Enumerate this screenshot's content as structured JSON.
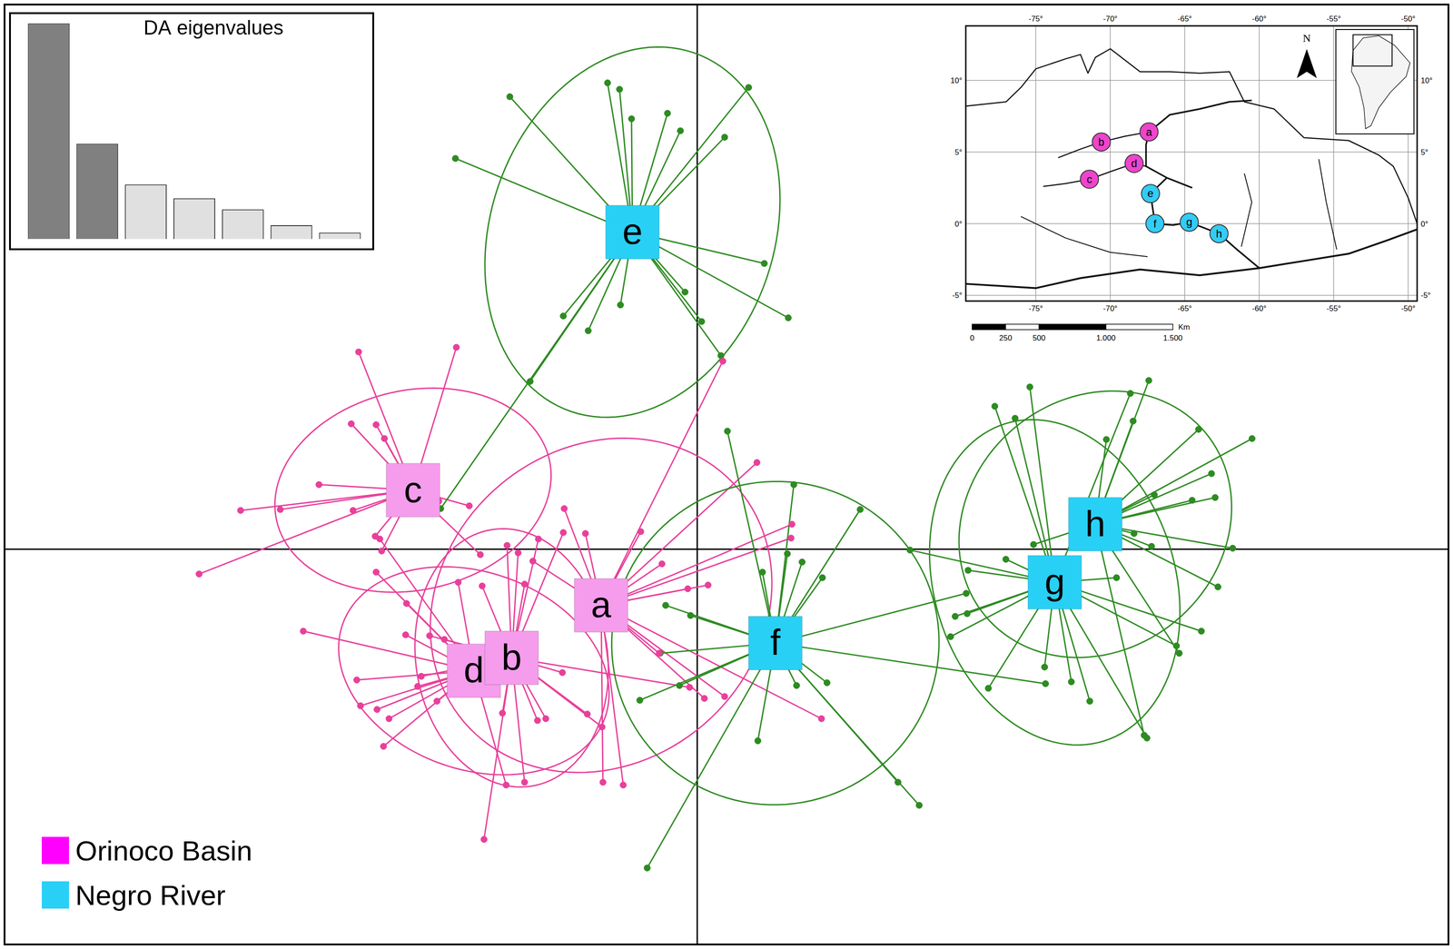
{
  "chart_data": [
    {
      "type": "scatter",
      "xlim": [
        -7.52,
        8.16
      ],
      "ylim": [
        -4.3,
        5.92
      ],
      "xticks": [
        0
      ],
      "yticks": [
        0
      ],
      "grid": true,
      "tick_labels": false,
      "legend": "lower left",
      "legend_entries": [
        {
          "name": "Orinoco Basin",
          "color": "#ff00ff"
        },
        {
          "name": "Negro River",
          "color": "#29d0f5"
        }
      ],
      "series": [
        {
          "name": "c",
          "region": "Orinoco Basin",
          "color": "#e8409b",
          "center_color": "#f59cec",
          "center": [
            -3.08,
            0.64
          ],
          "points": [
            [
              -3.67,
              2.14
            ],
            [
              -2.61,
              2.19
            ],
            [
              -3.75,
              1.36
            ],
            [
              -3.48,
              1.35
            ],
            [
              -3.39,
              1.2
            ],
            [
              -4.1,
              0.7
            ],
            [
              -4.95,
              0.42
            ],
            [
              -4.52,
              0.43
            ],
            [
              -3.73,
              0.42
            ],
            [
              -5.4,
              -0.27
            ],
            [
              -3.49,
              0.14
            ],
            [
              -3.42,
              -0.02
            ],
            [
              -2.35,
              -0.06
            ],
            [
              -2.47,
              0.47
            ],
            [
              -2.8,
              0.52
            ]
          ]
        },
        {
          "name": "d",
          "region": "Orinoco Basin",
          "color": "#e8409b",
          "center_color": "#f59cec",
          "center": [
            -2.42,
            -1.32
          ],
          "points": [
            [
              -4.27,
              -0.89
            ],
            [
              -3.69,
              -1.42
            ],
            [
              -3.65,
              -1.7
            ],
            [
              -3.47,
              -1.74
            ],
            [
              -3.34,
              -1.84
            ],
            [
              -3.4,
              -2.14
            ],
            [
              -3.15,
              -0.59
            ],
            [
              -3.16,
              -0.93
            ],
            [
              -3.48,
              -0.25
            ],
            [
              -3.03,
              -1.49
            ],
            [
              -2.82,
              -1.65
            ],
            [
              -2.59,
              -0.36
            ],
            [
              -3.44,
              0.11
            ],
            [
              -2.07,
              -2.56
            ]
          ]
        },
        {
          "name": "b",
          "region": "Orinoco Basin",
          "color": "#e8409b",
          "center_color": "#f59cec",
          "center": [
            -2.01,
            -1.18
          ],
          "points": [
            [
              -2.06,
              0.04
            ],
            [
              -1.94,
              -0.04
            ],
            [
              -1.72,
              0.11
            ],
            [
              -1.45,
              0.18
            ],
            [
              -2.33,
              -0.4
            ],
            [
              -1.87,
              -0.38
            ],
            [
              -2.9,
              -0.94
            ],
            [
              -2.74,
              -0.98
            ],
            [
              -2.99,
              -1.38
            ],
            [
              -1.73,
              -1.86
            ],
            [
              -1.64,
              -1.84
            ],
            [
              -1.87,
              -2.53
            ],
            [
              -2.31,
              -3.15
            ],
            [
              -2.11,
              -1.78
            ],
            [
              -1.19,
              -1.79
            ],
            [
              -1.03,
              -1.93
            ],
            [
              -1.46,
              -1.34
            ],
            [
              -0.08,
              -1.5
            ]
          ]
        },
        {
          "name": "a",
          "region": "Orinoco Basin",
          "color": "#e8409b",
          "center_color": "#f59cec",
          "center": [
            -1.04,
            -0.61
          ],
          "points": [
            [
              0.28,
              2.04
            ],
            [
              0.65,
              0.94
            ],
            [
              1.03,
              0.27
            ],
            [
              1.02,
              0.12
            ],
            [
              -0.38,
              -0.16
            ],
            [
              -0.1,
              -0.43
            ],
            [
              0.12,
              -0.39
            ],
            [
              -0.61,
              0.19
            ],
            [
              -1.21,
              0.17
            ],
            [
              -1.44,
              0.44
            ],
            [
              -0.8,
              -2.56
            ],
            [
              -1.02,
              -2.53
            ],
            [
              0.3,
              -1.6
            ],
            [
              1.35,
              -1.84
            ],
            [
              0.08,
              -1.62
            ],
            [
              -1.78,
              -0.13
            ],
            [
              -0.41,
              -1.13
            ]
          ]
        },
        {
          "name": "e",
          "region": "Negro River",
          "color": "#2e8b22",
          "center_color": "#29d0f5",
          "center": [
            -0.7,
            3.44
          ],
          "points": [
            [
              -2.03,
              4.91
            ],
            [
              -0.97,
              5.06
            ],
            [
              -0.84,
              4.99
            ],
            [
              -0.71,
              4.67
            ],
            [
              -0.32,
              4.73
            ],
            [
              -0.18,
              4.54
            ],
            [
              0.3,
              4.47
            ],
            [
              0.56,
              5.01
            ],
            [
              -2.62,
              4.24
            ],
            [
              0.73,
              3.1
            ],
            [
              0.99,
              2.51
            ],
            [
              -1.45,
              2.53
            ],
            [
              -1.18,
              2.37
            ],
            [
              -0.83,
              2.65
            ],
            [
              -0.13,
              2.79
            ],
            [
              0.05,
              2.47
            ],
            [
              0.26,
              2.1
            ],
            [
              -1.81,
              1.82
            ],
            [
              -2.78,
              0.44
            ]
          ]
        },
        {
          "name": "f",
          "region": "Negro River",
          "color": "#2e8b22",
          "center_color": "#29d0f5",
          "center": [
            0.85,
            -1.02
          ],
          "points": [
            [
              0.33,
              1.28
            ],
            [
              1.05,
              0.7
            ],
            [
              1.77,
              0.43
            ],
            [
              1.14,
              -0.14
            ],
            [
              1.36,
              -0.31
            ],
            [
              0.98,
              -0.05
            ],
            [
              0.71,
              -0.25
            ],
            [
              -0.07,
              -0.72
            ],
            [
              -0.34,
              -0.61
            ],
            [
              -0.4,
              -1.13
            ],
            [
              -0.62,
              -1.64
            ],
            [
              -0.19,
              -1.48
            ],
            [
              0.66,
              -2.08
            ],
            [
              1.08,
              -1.48
            ],
            [
              1.41,
              -1.45
            ],
            [
              2.18,
              -2.53
            ],
            [
              2.41,
              -2.78
            ],
            [
              -0.54,
              -3.46
            ],
            [
              2.92,
              -0.48
            ],
            [
              3.78,
              -1.46
            ]
          ]
        },
        {
          "name": "g",
          "region": "Negro River",
          "color": "#2e8b22",
          "center_color": "#29d0f5",
          "center": [
            3.88,
            -0.36
          ],
          "points": [
            [
              3.23,
              1.55
            ],
            [
              3.45,
              1.42
            ],
            [
              3.61,
              1.76
            ],
            [
              4.7,
              1.69
            ],
            [
              2.31,
              -0.01
            ],
            [
              2.94,
              -0.23
            ],
            [
              2.8,
              -0.73
            ],
            [
              2.75,
              -0.95
            ],
            [
              3.16,
              -1.51
            ],
            [
              3.77,
              -1.28
            ],
            [
              4.06,
              -1.44
            ],
            [
              4.26,
              -1.65
            ],
            [
              4.88,
              -2.05
            ],
            [
              4.55,
              -0.31
            ],
            [
              5.2,
              -1.05
            ],
            [
              5.47,
              -0.89
            ],
            [
              3.35,
              -0.11
            ],
            [
              2.93,
              -0.7
            ]
          ]
        },
        {
          "name": "h",
          "region": "Negro River",
          "color": "#2e8b22",
          "center_color": "#29d0f5",
          "center": [
            4.32,
            0.27
          ],
          "points": [
            [
              4.9,
              1.83
            ],
            [
              4.73,
              1.39
            ],
            [
              5.44,
              1.3
            ],
            [
              6.02,
              1.2
            ],
            [
              5.58,
              0.82
            ],
            [
              5.62,
              0.56
            ],
            [
              5.37,
              0.53
            ],
            [
              5.81,
              0.01
            ],
            [
              5.65,
              -0.41
            ],
            [
              4.93,
              0.03
            ],
            [
              4.74,
              0.17
            ],
            [
              4.44,
              1.19
            ],
            [
              4.85,
              -2.02
            ],
            [
              5.23,
              -1.13
            ],
            [
              3.65,
              0.05
            ],
            [
              4.96,
              0.59
            ]
          ]
        }
      ]
    },
    {
      "type": "bar",
      "title": "DA eigenvalues",
      "categories": [
        null,
        null,
        null,
        null,
        null,
        null,
        null
      ],
      "values": [
        233,
        103,
        59,
        44,
        32,
        15,
        7
      ],
      "colors": [
        "#808080",
        "#808080",
        "#e0e0e0",
        "#e0e0e0",
        "#e0e0e0",
        "#e0e0e0",
        "#e0e0e0"
      ],
      "ylim": [
        -12,
        245
      ],
      "tick_labels": false,
      "grid": false
    },
    {
      "type": "map",
      "xlim": [
        -79.7,
        -49.4
      ],
      "ylim": [
        -5.4,
        13.8
      ],
      "grid": true,
      "xticks": [
        {
          "value": -75,
          "label": "-75°"
        },
        {
          "value": -70,
          "label": "-70°"
        },
        {
          "value": -65,
          "label": "-65°"
        },
        {
          "value": -60,
          "label": "-60°"
        },
        {
          "value": -55,
          "label": "-55°"
        },
        {
          "value": -50,
          "label": "-50°"
        }
      ],
      "yticks": [
        {
          "value": 10,
          "label": "10°"
        },
        {
          "value": 5,
          "label": "5°"
        },
        {
          "value": 0,
          "label": "0°"
        },
        {
          "value": -5,
          "label": "-5°"
        }
      ],
      "north": "N",
      "scale_bar": {
        "unit": "Km",
        "ticks": [
          0,
          250,
          500,
          {
            "value": 1000,
            "label": "1.000"
          },
          {
            "value": 1500,
            "label": "1.500"
          }
        ]
      },
      "sites": [
        {
          "label": "a",
          "lon": -67.4,
          "lat": 6.4,
          "color": "#ee44cc"
        },
        {
          "label": "b",
          "lon": -70.6,
          "lat": 5.7,
          "color": "#ee44cc"
        },
        {
          "label": "c",
          "lon": -71.4,
          "lat": 3.1,
          "color": "#ee44cc"
        },
        {
          "label": "d",
          "lon": -68.4,
          "lat": 4.2,
          "color": "#ee44cc"
        },
        {
          "label": "e",
          "lon": -67.3,
          "lat": 2.1,
          "color": "#33ccf5"
        },
        {
          "label": "f",
          "lon": -67.0,
          "lat": 0.0,
          "color": "#33ccf5"
        },
        {
          "label": "g",
          "lon": -64.7,
          "lat": 0.1,
          "color": "#33ccf5"
        },
        {
          "label": "h",
          "lon": -62.7,
          "lat": -0.7,
          "color": "#33ccf5"
        }
      ]
    }
  ]
}
